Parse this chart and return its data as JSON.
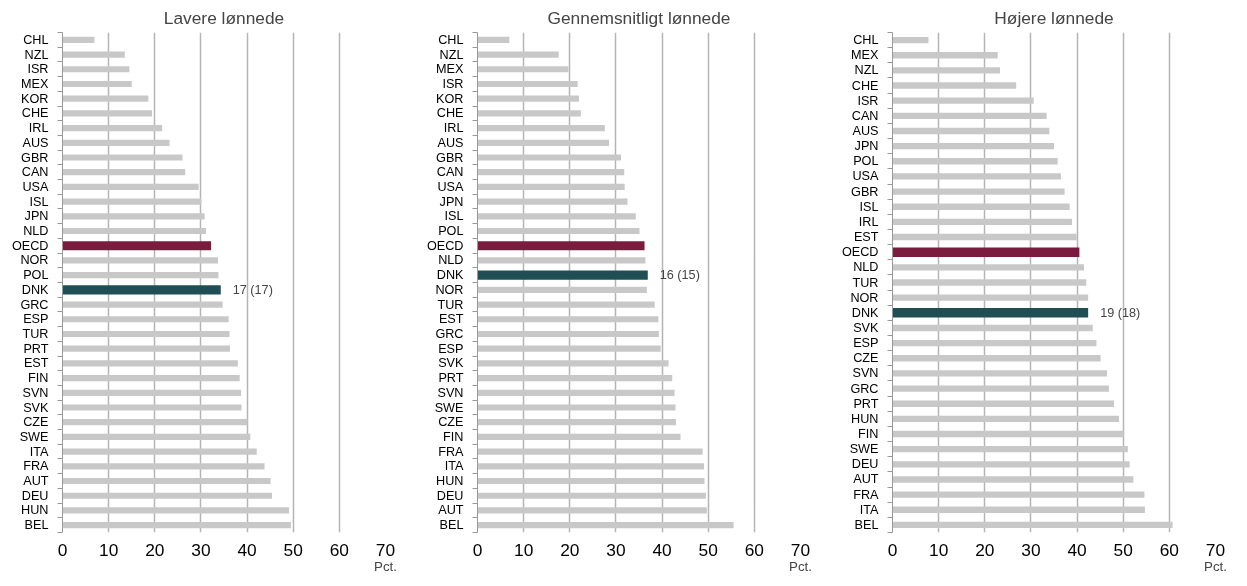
{
  "chart_data": [
    {
      "type": "bar",
      "orientation": "horizontal",
      "title": "Lavere lønnede",
      "xlabel": "Pct.",
      "categories": [
        "CHL",
        "NZL",
        "ISR",
        "MEX",
        "KOR",
        "CHE",
        "IRL",
        "AUS",
        "GBR",
        "CAN",
        "USA",
        "ISL",
        "JPN",
        "NLD",
        "OECD",
        "NOR",
        "POL",
        "DNK",
        "GRC",
        "ESP",
        "TUR",
        "PRT",
        "EST",
        "FIN",
        "SVN",
        "SVK",
        "CZE",
        "SWE",
        "ITA",
        "FRA",
        "AUT",
        "DEU",
        "HUN",
        "BEL"
      ],
      "values": [
        6.9,
        13.5,
        14.5,
        15,
        18.6,
        19.4,
        21.6,
        23.2,
        26,
        26.6,
        29.5,
        30.1,
        30.8,
        31.1,
        32.2,
        33.7,
        33.8,
        34.3,
        34.7,
        36,
        36.2,
        36.3,
        38,
        38.4,
        38.7,
        38.8,
        40.1,
        40.7,
        42.1,
        43.8,
        45.1,
        45.4,
        49.1,
        49.5
      ],
      "colors": [
        "#c8c8c8",
        "#c8c8c8",
        "#c8c8c8",
        "#c8c8c8",
        "#c8c8c8",
        "#c8c8c8",
        "#c8c8c8",
        "#c8c8c8",
        "#c8c8c8",
        "#c8c8c8",
        "#c8c8c8",
        "#c8c8c8",
        "#c8c8c8",
        "#c8c8c8",
        "#7b1c3e",
        "#c8c8c8",
        "#c8c8c8",
        "#1f4f55",
        "#c8c8c8",
        "#c8c8c8",
        "#c8c8c8",
        "#c8c8c8",
        "#c8c8c8",
        "#c8c8c8",
        "#c8c8c8",
        "#c8c8c8",
        "#c8c8c8",
        "#c8c8c8",
        "#c8c8c8",
        "#c8c8c8",
        "#c8c8c8",
        "#c8c8c8",
        "#c8c8c8",
        "#c8c8c8"
      ],
      "xlim": [
        0,
        70
      ],
      "xticks": [
        0,
        10,
        20,
        30,
        40,
        50,
        60,
        70
      ],
      "grid": "x",
      "annotations": [
        {
          "text": "17 (17)",
          "x": 34.3,
          "y": "DNK"
        }
      ]
    },
    {
      "type": "bar",
      "orientation": "horizontal",
      "title": "Gennemsnitligt lønnede",
      "xlabel": "Pct.",
      "categories": [
        "CHL",
        "NZL",
        "MEX",
        "ISR",
        "KOR",
        "CHE",
        "IRL",
        "AUS",
        "GBR",
        "CAN",
        "USA",
        "JPN",
        "ISL",
        "POL",
        "OECD",
        "NLD",
        "DNK",
        "NOR",
        "TUR",
        "EST",
        "GRC",
        "ESP",
        "SVK",
        "PRT",
        "SVN",
        "SWE",
        "CZE",
        "FIN",
        "FRA",
        "ITA",
        "HUN",
        "DEU",
        "AUT",
        "BEL"
      ],
      "values": [
        6.9,
        17.6,
        19.7,
        21.7,
        22,
        22.4,
        27.6,
        28.5,
        31.1,
        31.8,
        31.9,
        32.5,
        34.3,
        35.1,
        36.2,
        36.4,
        36.9,
        36.7,
        38.4,
        39.2,
        39.3,
        39.7,
        41.4,
        42.2,
        42.7,
        42.9,
        43,
        44,
        48.8,
        49.1,
        49.2,
        49.5,
        49.7,
        55.5
      ],
      "colors": [
        "#c8c8c8",
        "#c8c8c8",
        "#c8c8c8",
        "#c8c8c8",
        "#c8c8c8",
        "#c8c8c8",
        "#c8c8c8",
        "#c8c8c8",
        "#c8c8c8",
        "#c8c8c8",
        "#c8c8c8",
        "#c8c8c8",
        "#c8c8c8",
        "#c8c8c8",
        "#7b1c3e",
        "#c8c8c8",
        "#1f4f55",
        "#c8c8c8",
        "#c8c8c8",
        "#c8c8c8",
        "#c8c8c8",
        "#c8c8c8",
        "#c8c8c8",
        "#c8c8c8",
        "#c8c8c8",
        "#c8c8c8",
        "#c8c8c8",
        "#c8c8c8",
        "#c8c8c8",
        "#c8c8c8",
        "#c8c8c8",
        "#c8c8c8",
        "#c8c8c8",
        "#c8c8c8"
      ],
      "xlim": [
        0,
        70
      ],
      "xticks": [
        0,
        10,
        20,
        30,
        40,
        50,
        60,
        70
      ],
      "grid": "x",
      "annotations": [
        {
          "text": "16 (15)",
          "x": 36.9,
          "y": "DNK"
        }
      ]
    },
    {
      "type": "bar",
      "orientation": "horizontal",
      "title": "Højere lønnede",
      "xlabel": "Pct.",
      "categories": [
        "CHL",
        "MEX",
        "NZL",
        "CHE",
        "ISR",
        "CAN",
        "AUS",
        "JPN",
        "POL",
        "USA",
        "GBR",
        "ISL",
        "IRL",
        "EST",
        "OECD",
        "NLD",
        "TUR",
        "NOR",
        "DNK",
        "SVK",
        "ESP",
        "CZE",
        "SVN",
        "GRC",
        "PRT",
        "HUN",
        "FIN",
        "SWE",
        "DEU",
        "AUT",
        "FRA",
        "ITA",
        "BEL"
      ],
      "values": [
        7.8,
        22.8,
        23.3,
        26.8,
        30.6,
        33.4,
        34,
        35,
        35.8,
        36.5,
        37.3,
        38.4,
        38.9,
        39.9,
        40.5,
        41.5,
        42,
        42.4,
        42.4,
        43.4,
        44.2,
        45.1,
        46.5,
        46.9,
        48,
        49.1,
        50.1,
        51,
        51.4,
        52.2,
        54.6,
        54.7,
        60.7
      ],
      "colors": [
        "#c8c8c8",
        "#c8c8c8",
        "#c8c8c8",
        "#c8c8c8",
        "#c8c8c8",
        "#c8c8c8",
        "#c8c8c8",
        "#c8c8c8",
        "#c8c8c8",
        "#c8c8c8",
        "#c8c8c8",
        "#c8c8c8",
        "#c8c8c8",
        "#c8c8c8",
        "#7b1c3e",
        "#c8c8c8",
        "#c8c8c8",
        "#c8c8c8",
        "#1f4f55",
        "#c8c8c8",
        "#c8c8c8",
        "#c8c8c8",
        "#c8c8c8",
        "#c8c8c8",
        "#c8c8c8",
        "#c8c8c8",
        "#c8c8c8",
        "#c8c8c8",
        "#c8c8c8",
        "#c8c8c8",
        "#c8c8c8",
        "#c8c8c8",
        "#c8c8c8"
      ],
      "xlim": [
        0,
        70
      ],
      "xticks": [
        0,
        10,
        20,
        30,
        40,
        50,
        60,
        70
      ],
      "grid": "x",
      "annotations": [
        {
          "text": "19 (18)",
          "x": 42.4,
          "y": "DNK"
        }
      ]
    }
  ]
}
